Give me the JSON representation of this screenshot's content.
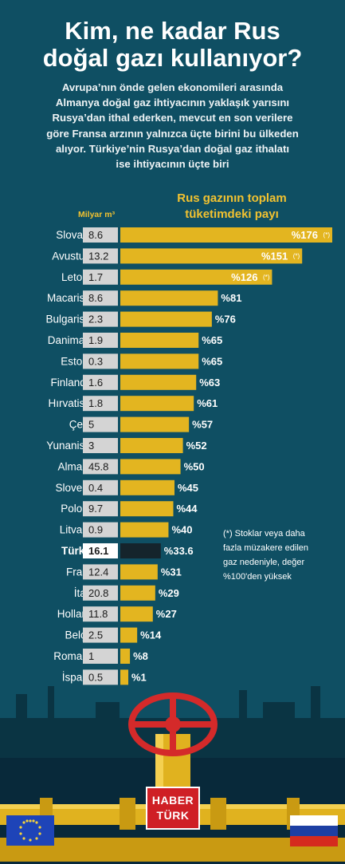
{
  "title_line1": "Kim, ne kadar Rus",
  "title_line2": "doğal gazı kullanıyor?",
  "subtitle_lines": [
    "Avrupa’nın önde gelen ekonomileri arasında",
    "Almanya doğal gaz ihtiyacının yaklaşık yarısını",
    "Rusya’dan ithal ederken, mevcut en son verilere",
    "göre Fransa arzının yalnızca üçte birini bu ülkeden",
    "alıyor. Türkiye’nin Rusya’dan doğal gaz ithalatı",
    "ise ihtiyacının üçte biri"
  ],
  "unit_label": "Milyar m³",
  "share_title_line1": "Rus gazının toplam",
  "share_title_line2": "tüketimdeki payı",
  "footnote_lines": [
    "(*) Stoklar veya daha",
    "fazla müzakere edilen",
    "gaz nedeniyle, değer",
    "%100'den yüksek"
  ],
  "logo_line1": "HABER",
  "logo_line2": "TÜRK",
  "colors": {
    "background": "#0f4f63",
    "bar": "#e3b520",
    "highlight_bar": "#15242c",
    "volume_box": "#d4d4d4",
    "text": "#ffffff",
    "accent": "#f2c230"
  },
  "chart_data": {
    "type": "bar",
    "orientation": "horizontal",
    "categories": [
      "Slovakya",
      "Avusturya",
      "Letonya",
      "Macaristan",
      "Bulgaristan",
      "Danimarka",
      "Estonya",
      "Finlandiya",
      "Hırvatistan",
      "Çekya",
      "Yunanistan",
      "Almanya",
      "Slovenya",
      "Polonya",
      "Litvanya",
      "Türkiye",
      "Fransa",
      "İtalya",
      "Hollanda",
      "Belçika",
      "Romanya",
      "İspanya"
    ],
    "consumption": [
      "8.6",
      "13.2",
      "1.7",
      "8.6",
      "2.3",
      "1.9",
      "0.3",
      "1.6",
      "1.8",
      "5",
      "3",
      "45.8",
      "0.4",
      "9.7",
      "0.9",
      "16.1",
      "12.4",
      "20.8",
      "11.8",
      "2.5",
      "1",
      "0.5"
    ],
    "values": [
      176,
      151,
      126,
      81,
      76,
      65,
      65,
      63,
      61,
      57,
      52,
      50,
      45,
      44,
      40,
      33.6,
      31,
      29,
      27,
      14,
      8,
      1
    ],
    "value_labels": [
      "%176",
      "%151",
      "%126",
      "%81",
      "%76",
      "%65",
      "%65",
      "%63",
      "%61",
      "%57",
      "%52",
      "%50",
      "%45",
      "%44",
      "%40",
      "%33.6",
      "%31",
      "%29",
      "%27",
      "%14",
      "%8",
      "%1"
    ],
    "footnote_marks": [
      "(*)",
      "(*)",
      "(*)",
      "",
      "",
      "",
      "",
      "",
      "",
      "",
      "",
      "",
      "",
      "",
      "",
      "",
      "",
      "",
      "",
      "",
      "",
      ""
    ],
    "highlight": "Türkiye"
  }
}
